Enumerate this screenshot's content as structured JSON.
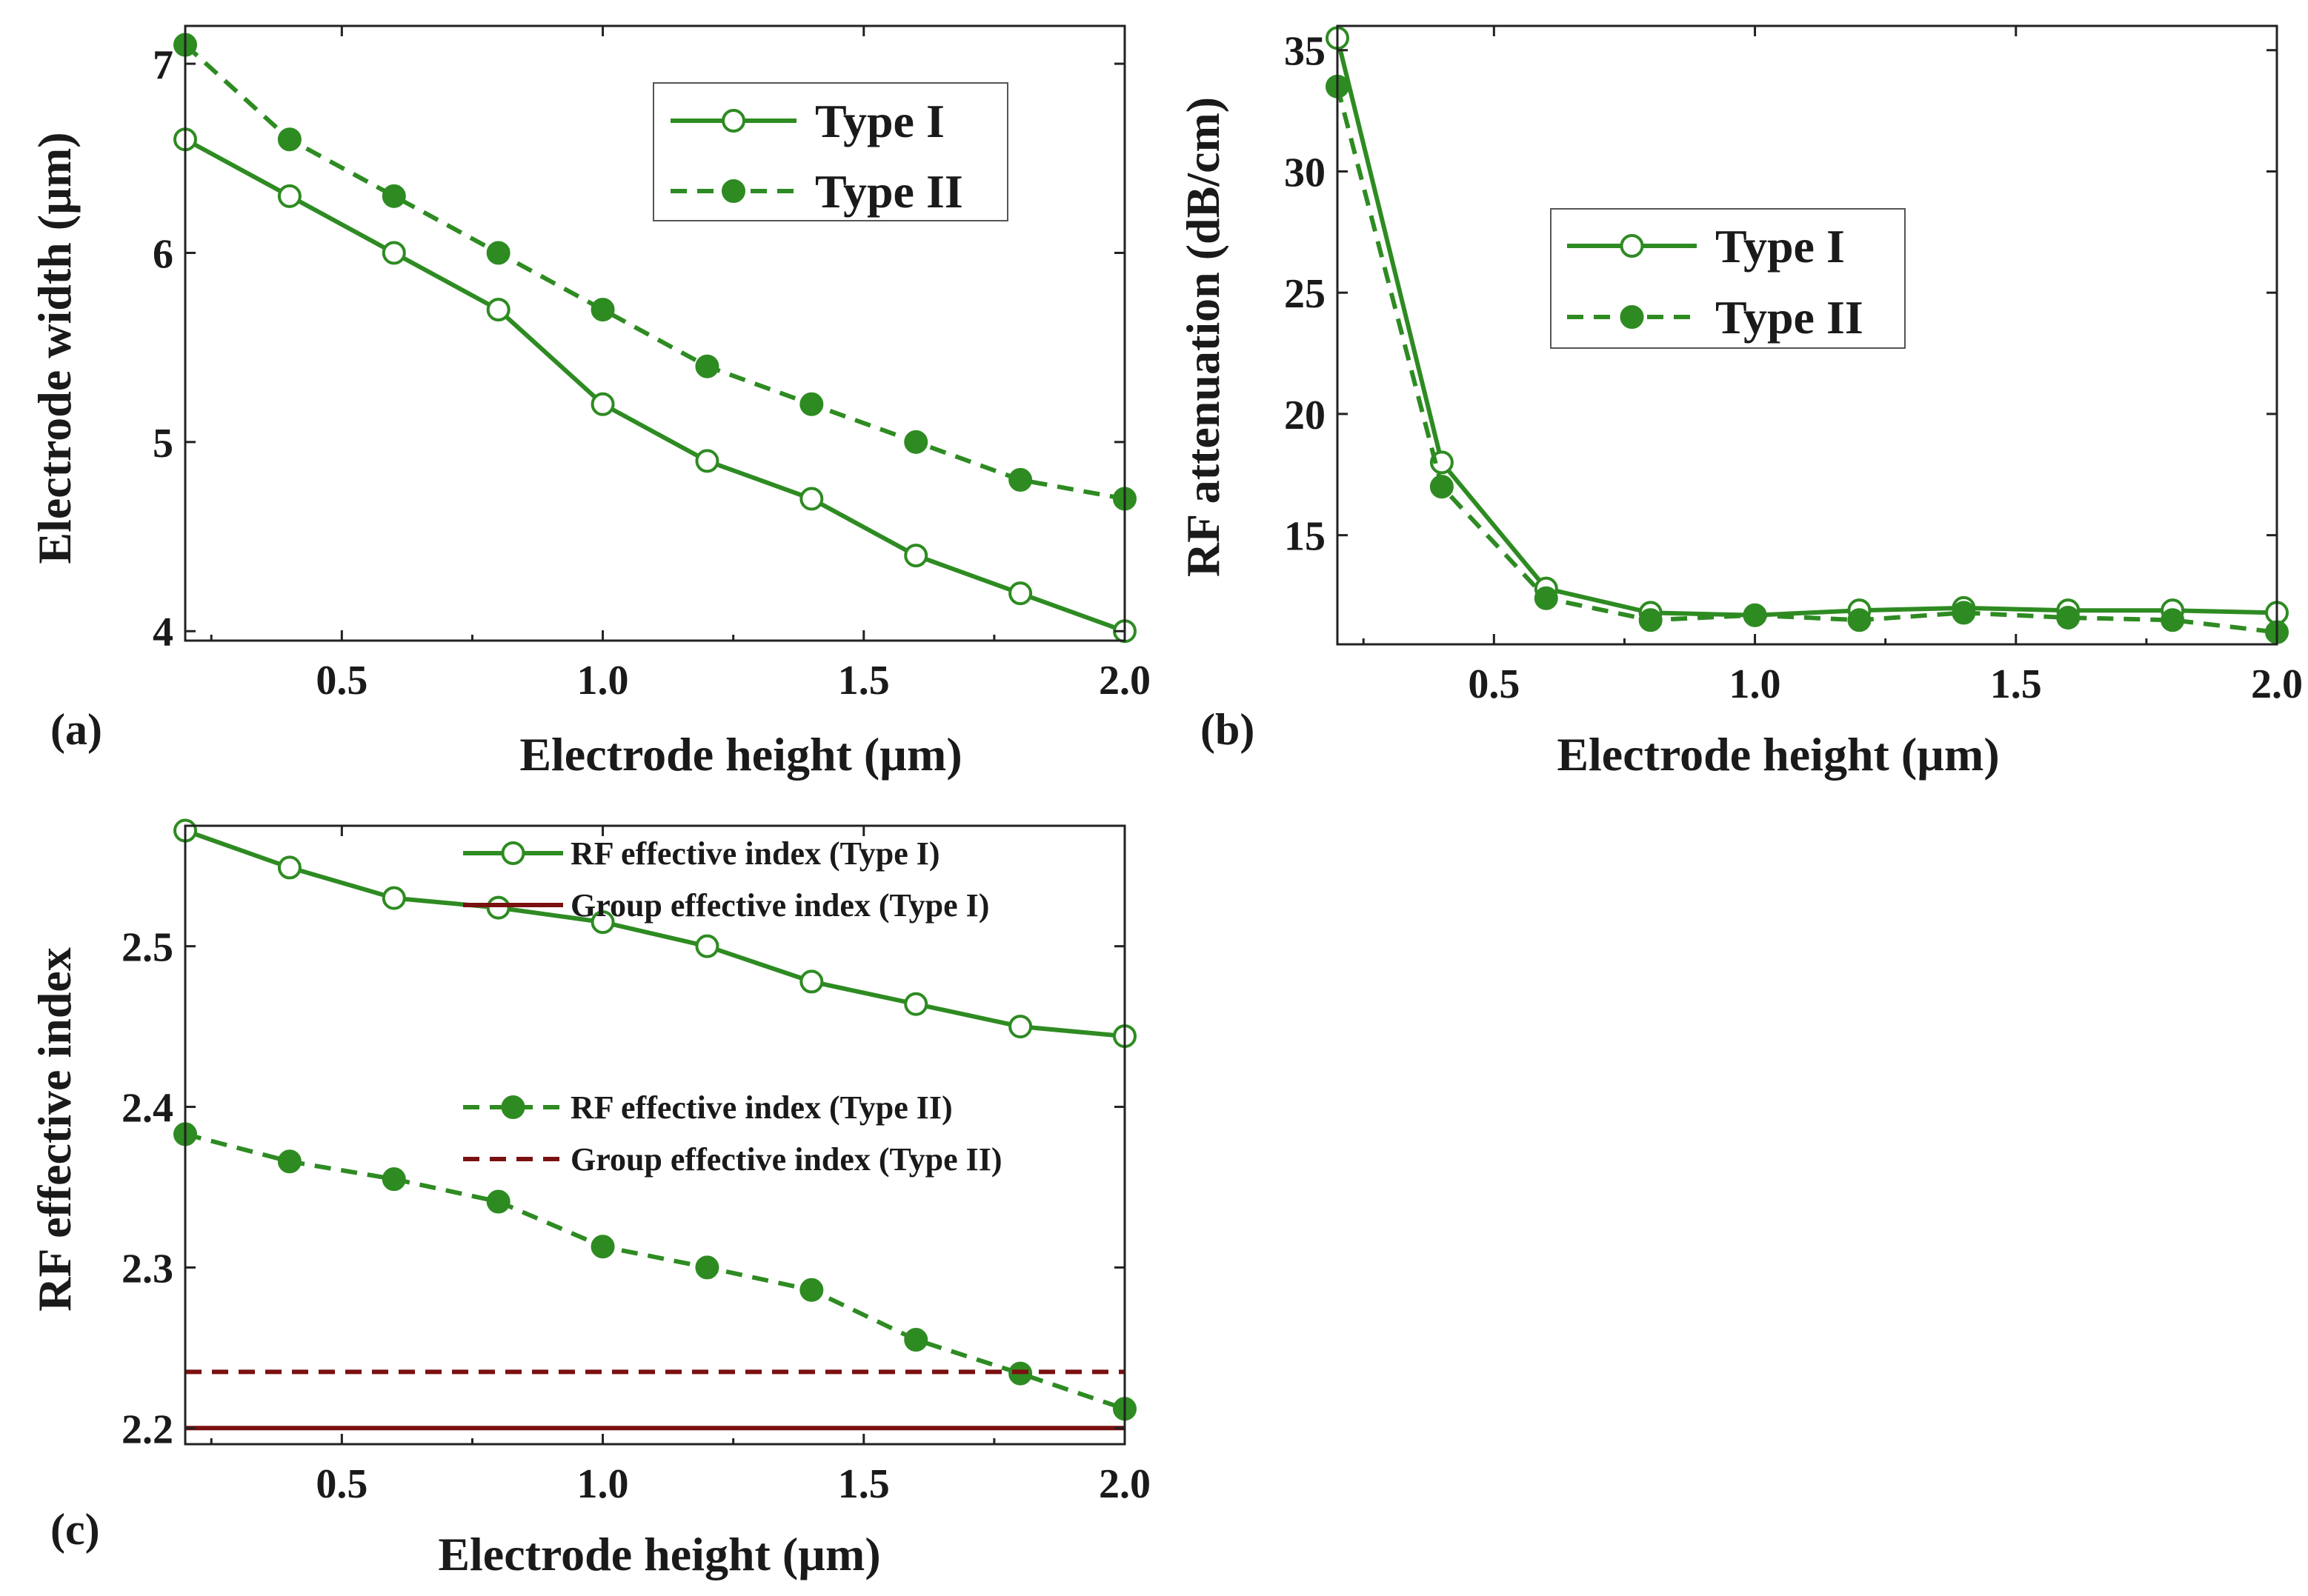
{
  "colors": {
    "green": "#2e8b22",
    "darkred": "#7b1010",
    "axis": "#222222"
  },
  "chart_data": [
    {
      "id": "a",
      "type": "line",
      "panel_label": "(a)",
      "xlabel": "Electrode height (µm)",
      "ylabel": "Electrode width (µm)",
      "xlim": [
        0.2,
        2.0
      ],
      "ylim": [
        3.95,
        7.2
      ],
      "xticks": [
        0.5,
        1.0,
        1.5,
        2.0
      ],
      "xtick_labels": [
        "0.5",
        "1.0",
        "1.5",
        "2.0"
      ],
      "yticks": [
        4,
        5,
        6,
        7
      ],
      "ytick_labels": [
        "4",
        "5",
        "6",
        "7"
      ],
      "x": [
        0.2,
        0.4,
        0.6,
        0.8,
        1.0,
        1.2,
        1.4,
        1.6,
        1.8,
        2.0
      ],
      "series": [
        {
          "name": "Type I",
          "style": "solid-open",
          "values": [
            6.6,
            6.3,
            6.0,
            5.7,
            5.2,
            4.9,
            4.7,
            4.4,
            4.2,
            4.0
          ]
        },
        {
          "name": "Type II",
          "style": "dashed-filled",
          "values": [
            7.1,
            6.6,
            6.3,
            6.0,
            5.7,
            5.4,
            5.2,
            5.0,
            4.8,
            4.7
          ]
        }
      ],
      "legend": "top-right"
    },
    {
      "id": "b",
      "type": "line",
      "panel_label": "(b)",
      "xlabel": "Electrode height (µm)",
      "ylabel": "RF attenuation (dB/cm)",
      "xlim": [
        0.2,
        2.0
      ],
      "ylim": [
        10.5,
        36
      ],
      "xticks": [
        0.5,
        1.0,
        1.5,
        2.0
      ],
      "xtick_labels": [
        "0.5",
        "1.0",
        "1.5",
        "2.0"
      ],
      "yticks": [
        15,
        20,
        25,
        30,
        35
      ],
      "ytick_labels": [
        "15",
        "20",
        "25",
        "30",
        "35"
      ],
      "x": [
        0.2,
        0.4,
        0.6,
        0.8,
        1.0,
        1.2,
        1.4,
        1.6,
        1.8,
        2.0
      ],
      "series": [
        {
          "name": "Type I",
          "style": "solid-open",
          "values": [
            35.5,
            18.0,
            12.8,
            11.8,
            11.7,
            11.9,
            12.0,
            11.9,
            11.9,
            11.8
          ]
        },
        {
          "name": "Type II",
          "style": "dashed-filled",
          "values": [
            33.5,
            17.0,
            12.4,
            11.5,
            11.7,
            11.5,
            11.8,
            11.6,
            11.5,
            11.0
          ]
        }
      ],
      "legend": "center-right"
    },
    {
      "id": "c",
      "type": "line",
      "panel_label": "(c)",
      "xlabel": "Electrode height (µm)",
      "ylabel": "RF effective index",
      "xlim": [
        0.2,
        2.0
      ],
      "ylim": [
        2.19,
        2.575
      ],
      "xticks": [
        0.5,
        1.0,
        1.5,
        2.0
      ],
      "xtick_labels": [
        "0.5",
        "1.0",
        "1.5",
        "2.0"
      ],
      "yticks": [
        2.2,
        2.3,
        2.4,
        2.5
      ],
      "ytick_labels": [
        "2.2",
        "2.3",
        "2.4",
        "2.5"
      ],
      "x": [
        0.2,
        0.4,
        0.6,
        0.8,
        1.0,
        1.2,
        1.4,
        1.6,
        1.8,
        2.0
      ],
      "series": [
        {
          "name": "RF effective index (Type I)",
          "style": "solid-open",
          "values": [
            2.572,
            2.549,
            2.53,
            2.524,
            2.515,
            2.5,
            2.478,
            2.464,
            2.45,
            2.444
          ]
        },
        {
          "name": "Group effective index (Type I)",
          "style": "solid-darkred",
          "values": [
            2.2,
            2.2,
            2.2,
            2.2,
            2.2,
            2.2,
            2.2,
            2.2,
            2.2,
            2.2
          ]
        },
        {
          "name": "RF effective index (Type II)",
          "style": "dashed-filled",
          "values": [
            2.383,
            2.366,
            2.355,
            2.341,
            2.313,
            2.3,
            2.286,
            2.255,
            2.234,
            2.212
          ]
        },
        {
          "name": "Group effective index (Type II)",
          "style": "dashed-darkred",
          "values": [
            2.235,
            2.235,
            2.235,
            2.235,
            2.235,
            2.235,
            2.235,
            2.235,
            2.235,
            2.235
          ]
        }
      ],
      "legend": "top-right"
    }
  ]
}
